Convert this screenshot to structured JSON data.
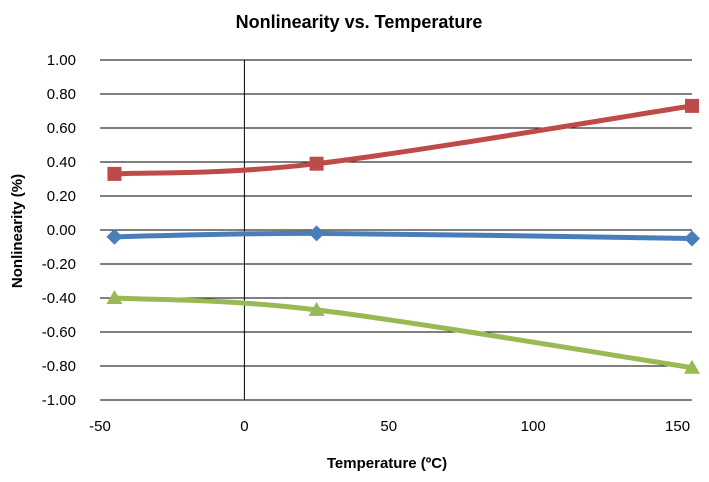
{
  "chart_data": {
    "type": "line",
    "title": "Nonlinearity vs. Temperature",
    "xlabel": "Temperature (ºC)",
    "ylabel": "Nonlinearity (%)",
    "xlim": [
      -50,
      155
    ],
    "ylim": [
      -1.0,
      1.0
    ],
    "x_ticks": [
      "-50",
      "0",
      "50",
      "100",
      "150"
    ],
    "x_tick_values": [
      -50,
      0,
      50,
      100,
      150
    ],
    "y_ticks": [
      "1.00",
      "0.80",
      "0.60",
      "0.40",
      "0.20",
      "0.00",
      "-0.20",
      "-0.40",
      "-0.60",
      "-0.80",
      "-1.00"
    ],
    "y_tick_values": [
      1.0,
      0.8,
      0.6,
      0.4,
      0.2,
      0.0,
      -0.2,
      -0.4,
      -0.6,
      -0.8,
      -1.0
    ],
    "grid": "horizontal",
    "legend": "none",
    "series": [
      {
        "color": "#4a7ebb",
        "marker": "diamond",
        "x": [
          -45,
          25,
          155
        ],
        "y": [
          -0.04,
          -0.02,
          -0.05
        ]
      },
      {
        "color": "#be4b48",
        "marker": "square",
        "x": [
          -45,
          25,
          155
        ],
        "y": [
          0.33,
          0.39,
          0.73
        ]
      },
      {
        "color": "#98b954",
        "marker": "triangle",
        "x": [
          -45,
          25,
          155
        ],
        "y": [
          -0.4,
          -0.47,
          -0.81
        ]
      }
    ]
  }
}
